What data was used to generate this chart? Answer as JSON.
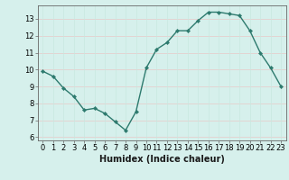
{
  "x": [
    0,
    1,
    2,
    3,
    4,
    5,
    6,
    7,
    8,
    9,
    10,
    11,
    12,
    13,
    14,
    15,
    16,
    17,
    18,
    19,
    20,
    21,
    22,
    23
  ],
  "y": [
    9.9,
    9.6,
    8.9,
    8.4,
    7.6,
    7.7,
    7.4,
    6.9,
    6.4,
    7.5,
    10.1,
    11.2,
    11.6,
    12.3,
    12.3,
    12.9,
    13.4,
    13.4,
    13.3,
    13.2,
    12.3,
    11.0,
    10.1,
    9.0
  ],
  "line_color": "#2d7a6e",
  "marker": "D",
  "marker_size": 2.2,
  "linewidth": 1.0,
  "xlabel": "Humidex (Indice chaleur)",
  "xlabel_fontsize": 7,
  "xlim": [
    -0.5,
    23.5
  ],
  "ylim": [
    5.8,
    13.8
  ],
  "yticks": [
    6,
    7,
    8,
    9,
    10,
    11,
    12,
    13
  ],
  "xticks": [
    0,
    1,
    2,
    3,
    4,
    5,
    6,
    7,
    8,
    9,
    10,
    11,
    12,
    13,
    14,
    15,
    16,
    17,
    18,
    19,
    20,
    21,
    22,
    23
  ],
  "grid_color": "#c8e8e0",
  "grid_color2": "#e8c8c8",
  "bg_color": "#d6f0ec",
  "tick_fontsize": 6,
  "spine_color": "#666666"
}
